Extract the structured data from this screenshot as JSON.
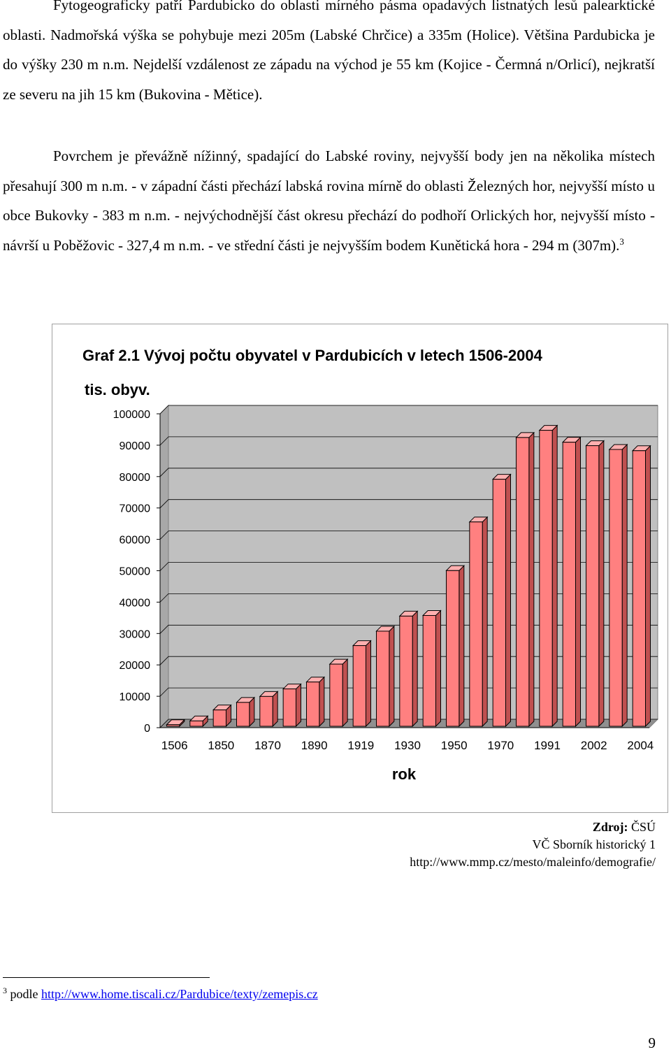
{
  "paragraph1": "Fytogeograficky patří Pardubicko do oblasti mírného pásma opadavých listnatých lesů palearktické oblasti. Nadmořská výška se pohybuje mezi 205m (Labské Chrčice) a 335m (Holice). Většina Pardubicka je do výšky 230 m n.m. Nejdelší vzdálenost ze západu na východ je 55 km (Kojice - Čermná n/Orlicí), nejkratší ze severu na jih 15 km (Bukovina - Mětice).",
  "paragraph2": "Povrchem je převážně nížinný, spadající do Labské roviny, nejvyšší body jen na několika místech přesahují 300 m n.m. - v západní části přechází labská rovina mírně do oblasti Železných hor, nejvyšší místo u obce Bukovky - 383 m n.m. - nejvýchodnější část okresu přechází do podhoří Orlických hor, nejvyšší místo - návrší u Poběžovic - 327,4 m n.m. - ve střední části je nejvyšším bodem Kunětická hora - 294 m (307m).",
  "paragraph2_footnote_ref": "3",
  "chart_data": {
    "type": "bar",
    "title": "Graf 2.1  Vývoj počtu obyvatel v Pardubicích v letech 1506-2004",
    "ylabel": "tis. obyv.",
    "xlabel": "rok",
    "categories": [
      "1506",
      "",
      "1850",
      "",
      "1870",
      "",
      "1890",
      "",
      "1919",
      "",
      "1930",
      "",
      "1950",
      "",
      "1970",
      "",
      "1991",
      "",
      "2002",
      "",
      "2004"
    ],
    "tick_labels": [
      "1506",
      "1850",
      "1870",
      "1890",
      "1919",
      "1930",
      "1950",
      "1970",
      "1991",
      "2002",
      "2004"
    ],
    "values": [
      500,
      1700,
      5200,
      7600,
      9500,
      11900,
      14100,
      19800,
      25700,
      30300,
      35100,
      35300,
      49600,
      65100,
      78700,
      92000,
      94300,
      90500,
      89400,
      88200,
      87800
    ],
    "ylim": [
      0,
      100000
    ],
    "yticks": [
      "0",
      "10000",
      "20000",
      "30000",
      "40000",
      "50000",
      "60000",
      "70000",
      "80000",
      "90000",
      "100000"
    ],
    "grid": true,
    "colors": {
      "bar": "#ff8080",
      "plot_bg": "#c0c0c0",
      "edge": "#000000"
    }
  },
  "source": {
    "label": "Zdroj:",
    "value": " ČSÚ",
    "line2": "VČ Sborník historický 1",
    "line3": "http://www.mmp.cz/mesto/maleinfo/demografie/"
  },
  "footnote": {
    "number": "3",
    "text": " podle ",
    "link": "http://www.home.tiscali.cz/Pardubice/texty/zemepis.cz"
  },
  "page_number": "9"
}
